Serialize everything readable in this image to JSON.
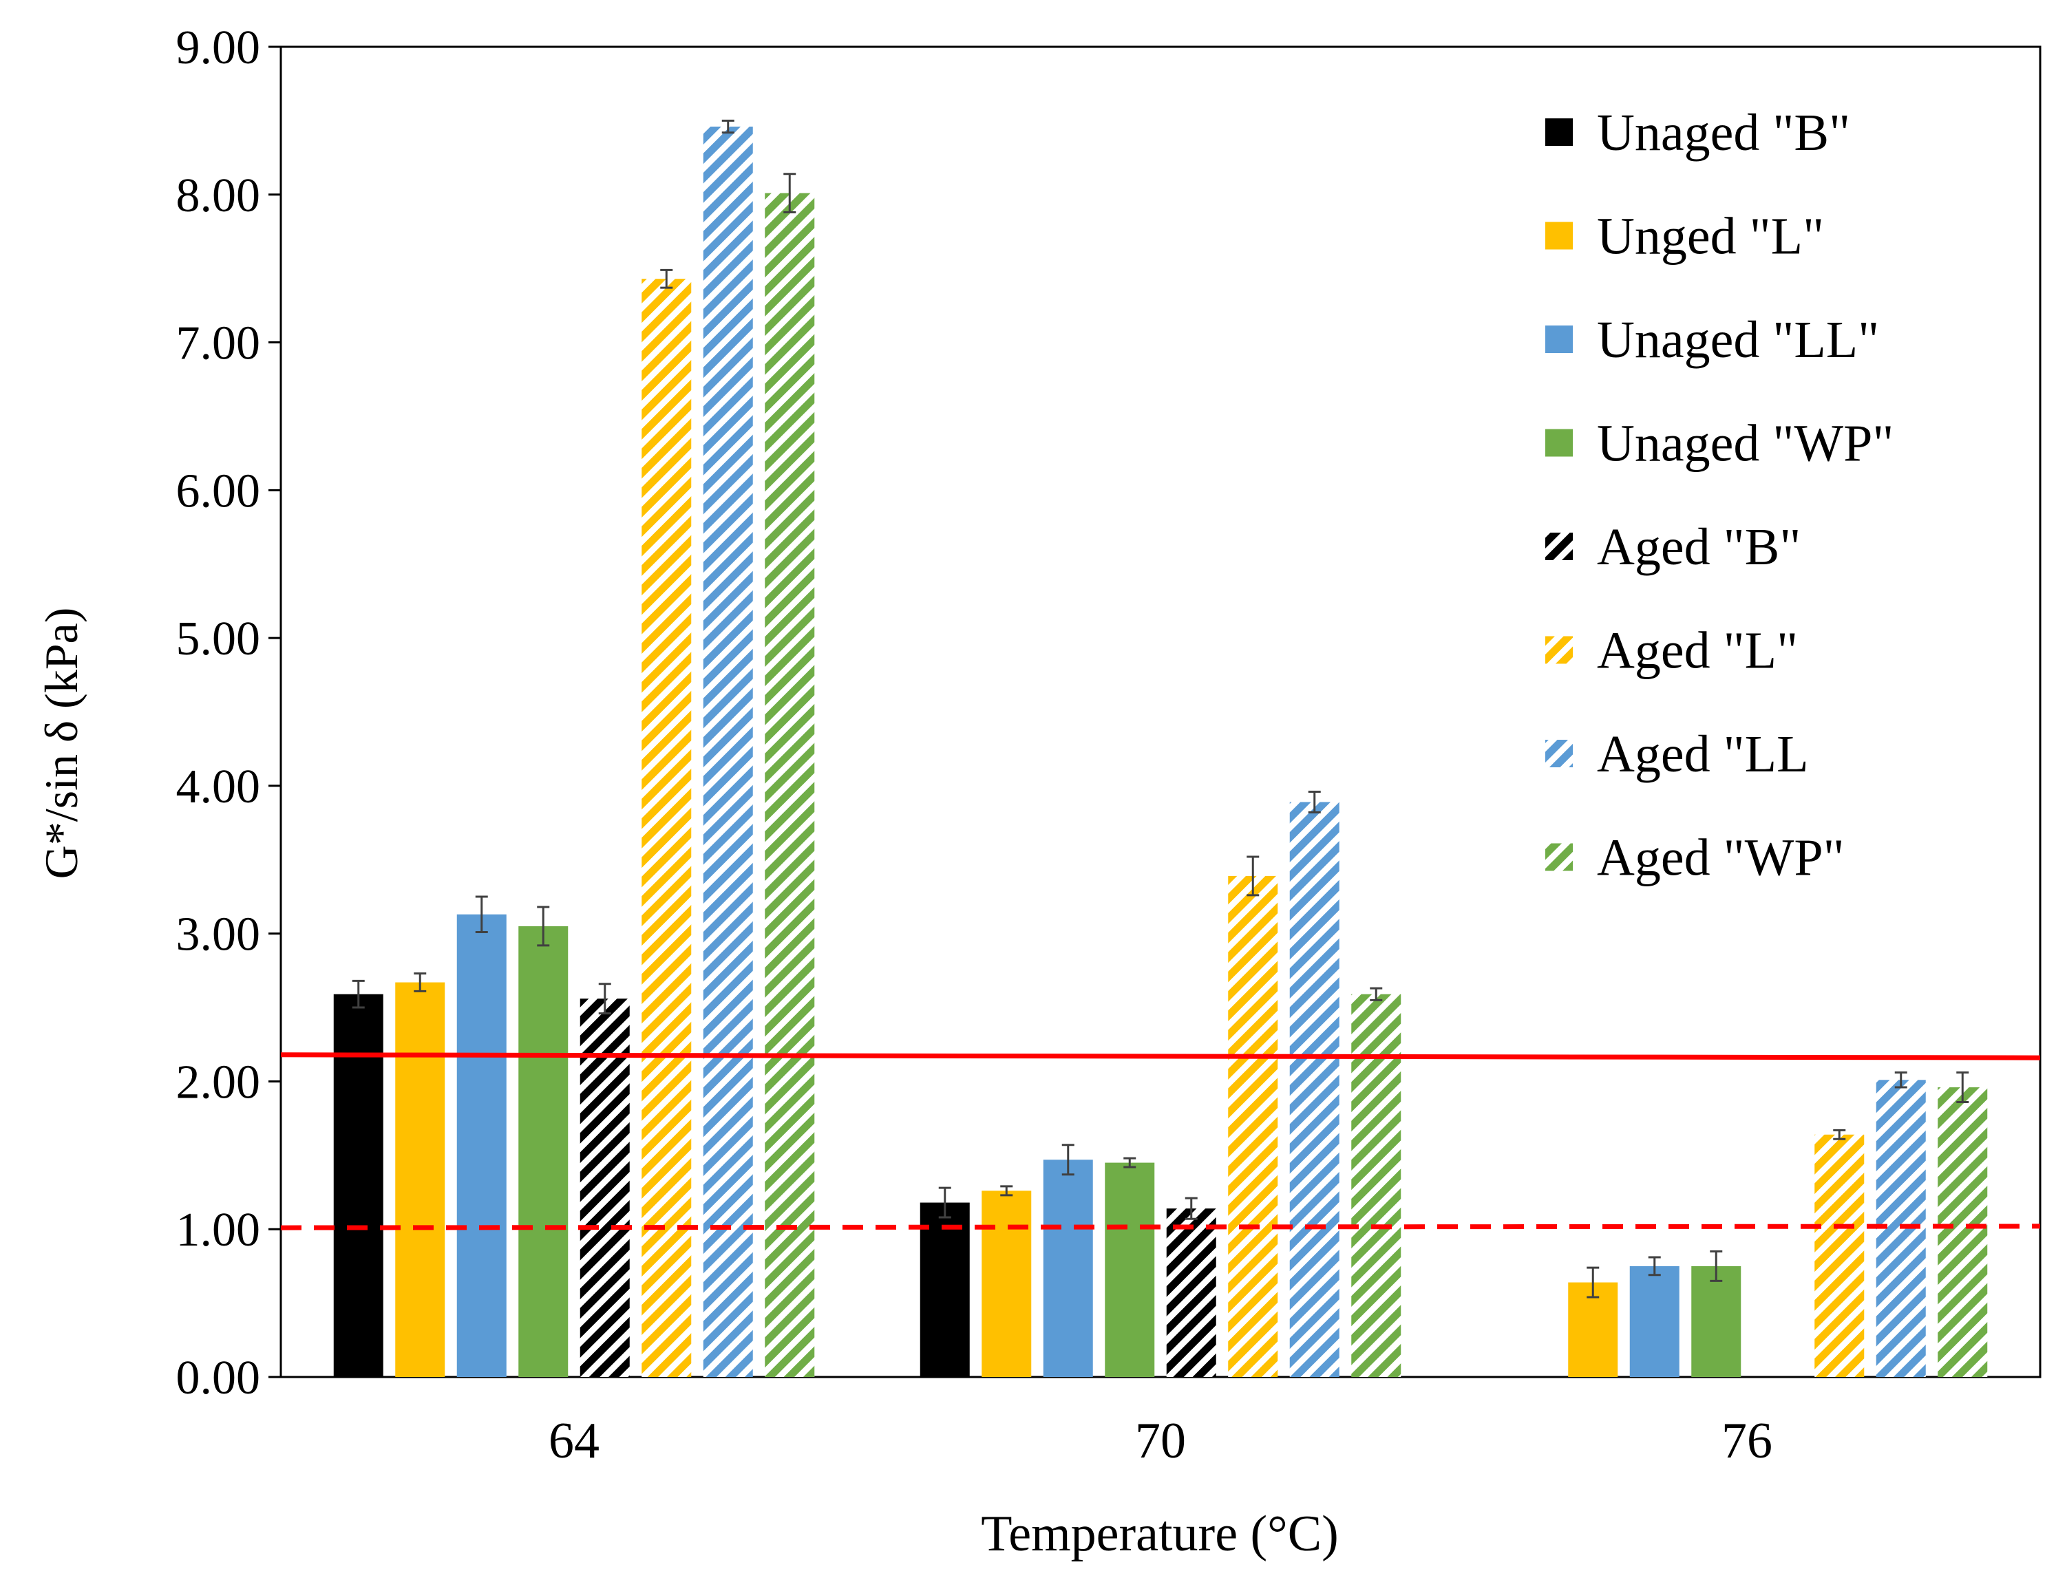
{
  "colors": {
    "B": "#000000",
    "L": "#FFC000",
    "LL": "#5B9BD5",
    "WP": "#70AD47",
    "reference_line": "#FF0000",
    "axis": "#000000",
    "error_bar": "#404040"
  },
  "chart_data": {
    "type": "bar",
    "title": "",
    "xlabel": "Temperature (°C)",
    "ylabel": "G*/sin δ (kPa)",
    "ylim": [
      0,
      9
    ],
    "y_ticks": [
      "0.00",
      "1.00",
      "2.00",
      "3.00",
      "4.00",
      "5.00",
      "6.00",
      "7.00",
      "8.00",
      "9.00"
    ],
    "categories": [
      "64",
      "70",
      "76"
    ],
    "legend_position": "top-right",
    "series": [
      {
        "name": "Unaged \"B\"",
        "legend_label": "Unaged \"B\"",
        "color_key": "B",
        "pattern": "solid",
        "values": [
          2.59,
          1.18,
          null
        ],
        "errors": [
          0.09,
          0.1,
          null
        ]
      },
      {
        "name": "Unged \"L\"",
        "legend_label": "Unged \"L\"",
        "color_key": "L",
        "pattern": "solid",
        "values": [
          2.67,
          1.26,
          0.64
        ],
        "errors": [
          0.06,
          0.03,
          0.1
        ]
      },
      {
        "name": "Unaged \"LL\"",
        "legend_label": "Unaged \"LL\"",
        "color_key": "LL",
        "pattern": "solid",
        "values": [
          3.13,
          1.47,
          0.75
        ],
        "errors": [
          0.12,
          0.1,
          0.06
        ]
      },
      {
        "name": "Unaged \"WP\"",
        "legend_label": "Unaged \"WP\"",
        "color_key": "WP",
        "pattern": "solid",
        "values": [
          3.05,
          1.45,
          0.75
        ],
        "errors": [
          0.13,
          0.03,
          0.1
        ]
      },
      {
        "name": "Aged \"B\"",
        "legend_label": "Aged \"B\"",
        "color_key": "B",
        "pattern": "hatched",
        "values": [
          2.56,
          1.14,
          null
        ],
        "errors": [
          0.1,
          0.07,
          null
        ]
      },
      {
        "name": "Aged \"L\"",
        "legend_label": "Aged \"L\"",
        "color_key": "L",
        "pattern": "hatched",
        "values": [
          7.43,
          3.39,
          1.64
        ],
        "errors": [
          0.06,
          0.13,
          0.03
        ]
      },
      {
        "name": "Aged \"LL",
        "legend_label": "Aged \"LL",
        "color_key": "LL",
        "pattern": "hatched",
        "values": [
          8.46,
          3.89,
          2.01
        ],
        "errors": [
          0.04,
          0.07,
          0.05
        ]
      },
      {
        "name": "Aged \"WP\"",
        "legend_label": "Aged \"WP\"",
        "color_key": "WP",
        "pattern": "hatched",
        "values": [
          8.01,
          2.59,
          1.96
        ],
        "errors": [
          0.13,
          0.04,
          0.1
        ]
      }
    ],
    "reference_lines": [
      {
        "name": "solid-threshold",
        "style": "solid",
        "y_start": 2.18,
        "y_end": 2.16
      },
      {
        "name": "dashed-threshold",
        "style": "dashed",
        "y_start": 1.01,
        "y_end": 1.02
      }
    ]
  }
}
